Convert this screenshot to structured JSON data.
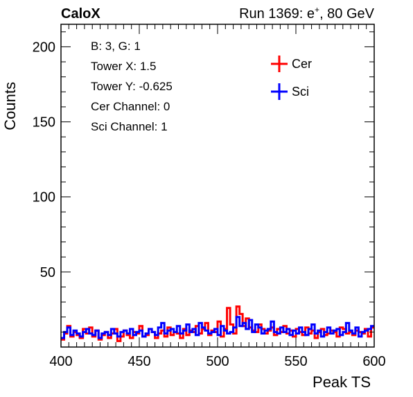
{
  "header": {
    "left": "CaloX",
    "right_prefix": "Run 1369: e",
    "right_sup": "+",
    "right_suffix": ", 80 GeV"
  },
  "info_lines": [
    "B: 3, G: 1",
    "Tower X: 1.5",
    "Tower Y: -0.625",
    "Cer Channel: 0",
    "Sci Channel: 1"
  ],
  "chart_data": {
    "type": "line",
    "xlabel": "Peak TS",
    "ylabel": "Counts",
    "xlim": [
      400,
      600
    ],
    "ylim": [
      0,
      215
    ],
    "xticks": [
      400,
      450,
      500,
      550,
      600
    ],
    "yticks": [
      50,
      100,
      150,
      200
    ],
    "grid": false,
    "legend_position": "top-right",
    "bin_width": 2,
    "series": [
      {
        "name": "Cer",
        "color": "#ff0000",
        "values": [
          5,
          9,
          14,
          7,
          10,
          8,
          6,
          12,
          9,
          13,
          7,
          11,
          5,
          8,
          10,
          6,
          9,
          12,
          4,
          7,
          11,
          8,
          6,
          10,
          9,
          14,
          7,
          8,
          12,
          10,
          6,
          9,
          11,
          7,
          13,
          8,
          10,
          9,
          6,
          12,
          8,
          11,
          10,
          14,
          9,
          12,
          16,
          8,
          11,
          10,
          17,
          7,
          12,
          26,
          15,
          9,
          27,
          22,
          14,
          19,
          13,
          11,
          10,
          15,
          12,
          9,
          11,
          13,
          8,
          12,
          10,
          14,
          9,
          11,
          7,
          12,
          10,
          8,
          13,
          9,
          11,
          6,
          10,
          12,
          8,
          9,
          11,
          10,
          7,
          13,
          12,
          9,
          10,
          8,
          11,
          10,
          9,
          12,
          7,
          13
        ]
      },
      {
        "name": "Sci",
        "color": "#0000ff",
        "values": [
          6,
          10,
          13,
          8,
          11,
          9,
          7,
          10,
          12,
          9,
          8,
          11,
          6,
          9,
          10,
          8,
          12,
          9,
          7,
          10,
          11,
          9,
          12,
          8,
          10,
          11,
          7,
          9,
          12,
          10,
          8,
          13,
          16,
          9,
          11,
          12,
          10,
          14,
          9,
          11,
          15,
          10,
          12,
          8,
          16,
          13,
          11,
          9,
          10,
          12,
          8,
          14,
          11,
          9,
          10,
          13,
          20,
          14,
          16,
          12,
          18,
          10,
          15,
          13,
          9,
          11,
          12,
          17,
          10,
          9,
          13,
          10,
          12,
          8,
          11,
          9,
          13,
          10,
          8,
          12,
          15,
          9,
          11,
          7,
          10,
          13,
          9,
          11,
          12,
          8,
          10,
          16,
          11,
          9,
          13,
          7,
          10,
          11,
          12,
          14
        ]
      }
    ]
  }
}
